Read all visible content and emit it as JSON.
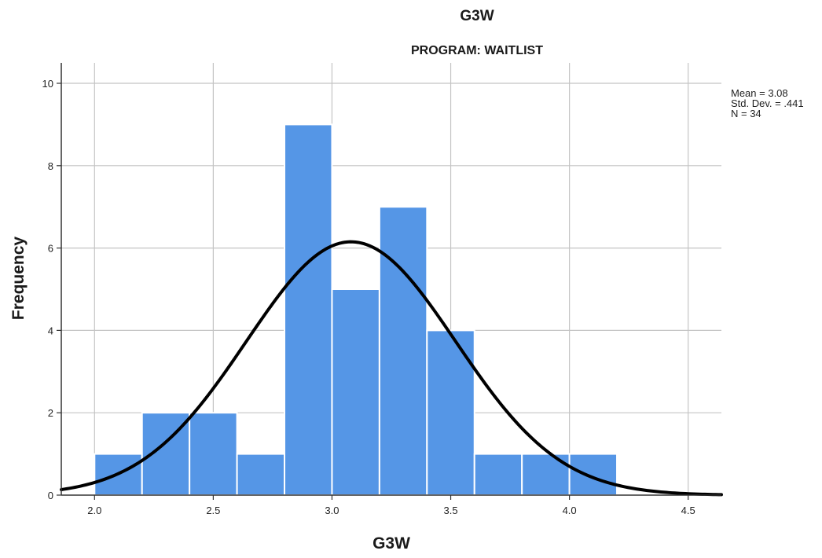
{
  "chart_data": {
    "type": "bar",
    "title": "G3W",
    "subtitle": "PROGRAM: WAITLIST",
    "xlabel": "G3W",
    "ylabel": "Frequency",
    "bins": [
      {
        "start": 2.0,
        "end": 2.2,
        "count": 1
      },
      {
        "start": 2.2,
        "end": 2.4,
        "count": 2
      },
      {
        "start": 2.4,
        "end": 2.6,
        "count": 2
      },
      {
        "start": 2.6,
        "end": 2.8,
        "count": 1
      },
      {
        "start": 2.8,
        "end": 3.0,
        "count": 9
      },
      {
        "start": 3.0,
        "end": 3.2,
        "count": 5
      },
      {
        "start": 3.2,
        "end": 3.4,
        "count": 7
      },
      {
        "start": 3.4,
        "end": 3.6,
        "count": 4
      },
      {
        "start": 3.6,
        "end": 3.8,
        "count": 1
      },
      {
        "start": 3.8,
        "end": 4.0,
        "count": 1
      },
      {
        "start": 4.0,
        "end": 4.2,
        "count": 1
      }
    ],
    "xlim": [
      1.86,
      4.64
    ],
    "ylim": [
      0,
      10
    ],
    "xticks": [
      2.0,
      2.5,
      3.0,
      3.5,
      4.0,
      4.5
    ],
    "xtick_labels": [
      "2.0",
      "2.5",
      "3.0",
      "3.5",
      "4.0",
      "4.5"
    ],
    "yticks": [
      0,
      2,
      4,
      6,
      8,
      10
    ],
    "ytick_labels": [
      "0",
      "2",
      "4",
      "6",
      "8",
      "10"
    ],
    "grid": true,
    "normal_curve": {
      "mean": 3.08,
      "std": 0.441,
      "n": 34,
      "bin_width": 0.2
    },
    "stats": [
      "Mean = 3.08",
      "Std. Dev. = .441",
      "N = 34"
    ],
    "stats_placement": "top-right",
    "colors": {
      "bar_fill": "#5596E6",
      "bar_stroke": "#ffffff",
      "curve": "#000000",
      "grid": "#c4c4c4",
      "axis": "#333333"
    }
  }
}
